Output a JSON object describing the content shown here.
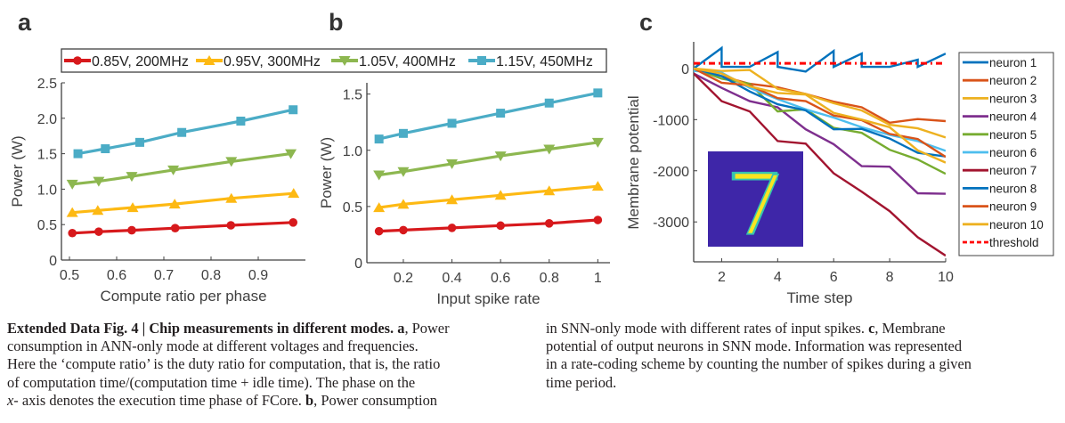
{
  "chart_data": [
    {
      "type": "line",
      "panel_label": "a",
      "title": "",
      "xlabel": "Compute ratio per phase",
      "ylabel": "Power (W)",
      "xlim": [
        0.483,
        1.0
      ],
      "ylim": [
        0,
        2.5
      ],
      "xticks": [
        0.5,
        0.6,
        0.7,
        0.8,
        0.9
      ],
      "xtick_labels": [
        "0.5",
        "0.6",
        "0.7",
        "0.8",
        "0.9"
      ],
      "yticks": [
        0,
        0.5,
        1.0,
        1.5,
        2.0,
        2.5
      ],
      "ytick_labels": [
        "0",
        "0.5",
        "1.0",
        "1.5",
        "2.0",
        "2.5"
      ],
      "grid": false,
      "series": [
        {
          "name": "0.85V, 200MHz",
          "color": "#d7191c",
          "marker": "circle",
          "x": [
            0.506,
            0.562,
            0.632,
            0.724,
            0.842,
            0.974
          ],
          "y": [
            0.38,
            0.4,
            0.42,
            0.45,
            0.49,
            0.53
          ]
        },
        {
          "name": "0.95V, 300MHz",
          "color": "#fdb913",
          "marker": "triangle-up",
          "x": [
            0.506,
            0.56,
            0.634,
            0.723,
            0.843,
            0.975
          ],
          "y": [
            0.67,
            0.7,
            0.74,
            0.79,
            0.87,
            0.94
          ]
        },
        {
          "name": "1.05V, 400MHz",
          "color": "#8db750",
          "marker": "triangle-down",
          "x": [
            0.506,
            0.562,
            0.632,
            0.72,
            0.843,
            0.969
          ],
          "y": [
            1.07,
            1.11,
            1.18,
            1.27,
            1.39,
            1.5
          ]
        },
        {
          "name": "1.15V, 450MHz",
          "color": "#4bacc6",
          "marker": "square",
          "x": [
            0.518,
            0.576,
            0.649,
            0.738,
            0.863,
            0.974
          ],
          "y": [
            1.5,
            1.57,
            1.66,
            1.8,
            1.96,
            2.12
          ]
        }
      ]
    },
    {
      "type": "line",
      "panel_label": "b",
      "title": "",
      "xlabel": "Input spike rate",
      "ylabel": "Power (W)",
      "xlim": [
        0.05,
        1.05
      ],
      "ylim": [
        0,
        1.6
      ],
      "xticks": [
        0.2,
        0.4,
        0.6,
        0.8,
        1.0
      ],
      "xtick_labels": [
        "0.2",
        "0.4",
        "0.6",
        "0.8",
        "1"
      ],
      "yticks": [
        0,
        0.5,
        1.0,
        1.5
      ],
      "ytick_labels": [
        "0",
        "0.5",
        "1.0",
        "1.5"
      ],
      "grid": false,
      "series": [
        {
          "name": "0.85V, 200MHz",
          "color": "#d7191c",
          "marker": "circle",
          "x": [
            0.1,
            0.2,
            0.4,
            0.6,
            0.8,
            1.0
          ],
          "y": [
            0.28,
            0.29,
            0.31,
            0.33,
            0.35,
            0.38
          ]
        },
        {
          "name": "0.95V, 300MHz",
          "color": "#fdb913",
          "marker": "triangle-up",
          "x": [
            0.1,
            0.2,
            0.4,
            0.6,
            0.8,
            1.0
          ],
          "y": [
            0.49,
            0.52,
            0.56,
            0.6,
            0.64,
            0.68
          ]
        },
        {
          "name": "1.05V, 400MHz",
          "color": "#8db750",
          "marker": "triangle-down",
          "x": [
            0.1,
            0.2,
            0.4,
            0.6,
            0.8,
            1.0
          ],
          "y": [
            0.78,
            0.81,
            0.88,
            0.95,
            1.01,
            1.07
          ]
        },
        {
          "name": "1.15V, 450MHz",
          "color": "#4bacc6",
          "marker": "square",
          "x": [
            0.1,
            0.2,
            0.4,
            0.6,
            0.8,
            1.0
          ],
          "y": [
            1.1,
            1.15,
            1.24,
            1.33,
            1.42,
            1.51
          ]
        }
      ]
    },
    {
      "type": "line",
      "panel_label": "c",
      "title": "",
      "xlabel": "Time step",
      "ylabel": "Membrane potential",
      "xlim": [
        1,
        10
      ],
      "ylim": [
        -3780,
        520
      ],
      "xticks": [
        2,
        4,
        6,
        8,
        10
      ],
      "xtick_labels": [
        "2",
        "4",
        "6",
        "8",
        "10"
      ],
      "yticks": [
        0,
        -1000,
        -2000,
        -3000
      ],
      "ytick_labels": [
        "0",
        "-1000",
        "-2000",
        "-3000"
      ],
      "grid": false,
      "legend_position": "outside-right",
      "inset": "MNIST digit 7 input image",
      "series": [
        {
          "name": "neuron 1",
          "color": "#0072bd",
          "x": [
            1,
            2,
            2,
            3,
            4,
            4,
            5,
            6,
            6,
            7,
            7,
            8,
            9,
            9,
            10
          ],
          "y": [
            0,
            400,
            30,
            30,
            320,
            30,
            -60,
            340,
            30,
            290,
            30,
            30,
            170,
            30,
            290
          ]
        },
        {
          "name": "neuron 2",
          "color": "#d95319",
          "x": [
            1,
            2,
            3,
            4,
            5,
            6,
            7,
            8,
            9,
            10
          ],
          "y": [
            0,
            -150,
            -300,
            -370,
            -500,
            -650,
            -760,
            -1060,
            -990,
            -1030
          ]
        },
        {
          "name": "neuron 3",
          "color": "#edb120",
          "x": [
            1,
            2,
            3,
            4,
            5,
            6,
            7,
            8,
            9,
            10
          ],
          "y": [
            0,
            -50,
            -30,
            -400,
            -500,
            -680,
            -820,
            -1100,
            -1170,
            -1350
          ]
        },
        {
          "name": "neuron 4",
          "color": "#7e2f8e",
          "x": [
            1,
            2,
            3,
            4,
            5,
            6,
            7,
            8,
            9,
            10
          ],
          "y": [
            -100,
            -380,
            -640,
            -760,
            -1190,
            -1480,
            -1910,
            -1920,
            -2440,
            -2450
          ]
        },
        {
          "name": "neuron 5",
          "color": "#77ac30",
          "x": [
            1,
            2,
            3,
            4,
            5,
            6,
            7,
            8,
            9,
            10
          ],
          "y": [
            0,
            -200,
            -300,
            -840,
            -800,
            -1160,
            -1260,
            -1590,
            -1780,
            -2060
          ]
        },
        {
          "name": "neuron 6",
          "color": "#4dbeee",
          "x": [
            1,
            2,
            3,
            4,
            5,
            6,
            7,
            8,
            9,
            10
          ],
          "y": [
            -50,
            -80,
            -380,
            -600,
            -800,
            -960,
            -1150,
            -1300,
            -1420,
            -1610
          ]
        },
        {
          "name": "neuron 7",
          "color": "#a2142f",
          "x": [
            1,
            2,
            3,
            4,
            5,
            6,
            7,
            8,
            9,
            10
          ],
          "y": [
            -100,
            -640,
            -840,
            -1420,
            -1470,
            -2050,
            -2410,
            -2790,
            -3300,
            -3660
          ]
        },
        {
          "name": "neuron 8",
          "color": "#0072bd",
          "x": [
            1,
            2,
            3,
            4,
            5,
            6,
            7,
            8,
            9,
            10
          ],
          "y": [
            0,
            -150,
            -450,
            -700,
            -820,
            -1190,
            -1180,
            -1370,
            -1650,
            -1720
          ]
        },
        {
          "name": "neuron 9",
          "color": "#d95319",
          "x": [
            1,
            2,
            3,
            4,
            5,
            6,
            7,
            8,
            9,
            10
          ],
          "y": [
            0,
            -280,
            -330,
            -580,
            -640,
            -920,
            -1010,
            -1280,
            -1380,
            -1730
          ]
        },
        {
          "name": "neuron 10",
          "color": "#edb120",
          "x": [
            1,
            2,
            3,
            4,
            5,
            6,
            7,
            8,
            9,
            10
          ],
          "y": [
            0,
            -100,
            -350,
            -480,
            -510,
            -870,
            -1000,
            -1150,
            -1600,
            -1840
          ]
        },
        {
          "name": "threshold",
          "color": "#ff0000",
          "dashed": true,
          "x": [
            1,
            10
          ],
          "y": [
            100,
            100
          ]
        }
      ]
    }
  ],
  "caption": {
    "left_lines": [
      {
        "bold": "Extended Data Fig. 4 | Chip measurements in different modes. a",
        "rest": ", Power"
      },
      {
        "text": "consumption in ANN-only mode at different voltages and frequencies."
      },
      {
        "text": "Here the ‘compute ratio’ is the duty ratio for computation, that is, the ratio"
      },
      {
        "text": "of computation time/(computation time + idle time). The phase on the"
      },
      {
        "italic": "x",
        "rest": "- axis denotes the execution time phase of FCore. ",
        "bold2": "b",
        "rest2": ", Power consumption"
      }
    ],
    "right_lines": [
      {
        "text": "in SNN-only mode with different rates of input spikes. ",
        "bold": "c",
        "rest": ", Membrane"
      },
      {
        "text": "potential of output neurons in SNN mode. Information was represented"
      },
      {
        "text": "in a rate-coding scheme by counting the number of spikes during a given"
      },
      {
        "text": "time period."
      }
    ]
  }
}
